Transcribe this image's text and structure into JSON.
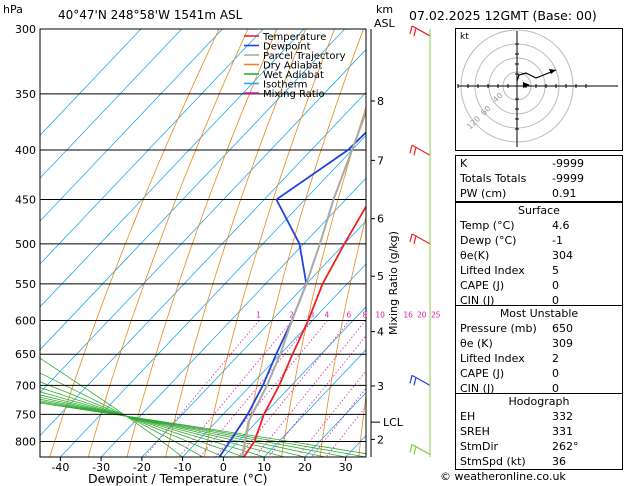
{
  "header": {
    "location": "40°47'N  248°58'W  1541m  ASL",
    "datetime": "07.02.2025  12GMT  (Base: 00)",
    "hpa_unit": "hPa",
    "km_unit": "km",
    "asl_label": "ASL",
    "watermark": "© weatheronline.co.uk"
  },
  "chart_data": {
    "type": "skew-t",
    "xlabel": "Dewpoint  /  Temperature  (°C)",
    "ylabel_right": "Mixing Ratio  (g/kg)",
    "pressure_levels": [
      300,
      350,
      400,
      450,
      500,
      550,
      600,
      650,
      700,
      750,
      800
    ],
    "pressure_range": [
      300,
      830
    ],
    "temp_ticks": [
      -40,
      -30,
      -20,
      -10,
      0,
      10,
      20,
      30
    ],
    "temp_range": [
      -45,
      35
    ],
    "km_ticks": [
      {
        "label": "8",
        "p": 356
      },
      {
        "label": "7",
        "p": 410
      },
      {
        "label": "6",
        "p": 471
      },
      {
        "label": "5",
        "p": 540
      },
      {
        "label": "4",
        "p": 616
      },
      {
        "label": "3",
        "p": 701
      },
      {
        "label": "2",
        "p": 796
      }
    ],
    "lcl": {
      "label": "LCL",
      "p": 764
    },
    "mixing_ratios": [
      1,
      2,
      3,
      4,
      6,
      8,
      10,
      16,
      20,
      25
    ],
    "mixing_ratio_labels": [
      "1",
      "2",
      "3",
      "4",
      "6",
      "8",
      "10",
      "16",
      "20",
      "25"
    ],
    "legend": [
      {
        "name": "Temperature",
        "color": "#ee2222"
      },
      {
        "name": "Dewpoint",
        "color": "#2244dd"
      },
      {
        "name": "Parcel Trajectory",
        "color": "#aaaaaa"
      },
      {
        "name": "Dry Adiabat",
        "color": "#e8881a"
      },
      {
        "name": "Wet Adiabat",
        "color": "#33aa33"
      },
      {
        "name": "Isotherm",
        "color": "#22aaee"
      },
      {
        "name": "Mixing Ratio",
        "color": "#dd22aa"
      }
    ],
    "series": [
      {
        "name": "Temperature",
        "color": "#ee2222",
        "points": [
          [
            830,
            5
          ],
          [
            800,
            4
          ],
          [
            750,
            0
          ],
          [
            700,
            -3
          ],
          [
            650,
            -7
          ],
          [
            600,
            -11
          ],
          [
            550,
            -16
          ],
          [
            500,
            -20
          ],
          [
            450,
            -24
          ],
          [
            400,
            -30
          ],
          [
            350,
            -37
          ],
          [
            300,
            -45
          ]
        ]
      },
      {
        "name": "Dewpoint",
        "color": "#2244dd",
        "points": [
          [
            830,
            -1
          ],
          [
            800,
            -2
          ],
          [
            750,
            -4
          ],
          [
            700,
            -7
          ],
          [
            650,
            -11
          ],
          [
            600,
            -15
          ],
          [
            550,
            -20
          ],
          [
            500,
            -31
          ],
          [
            450,
            -47
          ],
          [
            400,
            -41
          ],
          [
            350,
            -40
          ],
          [
            300,
            -45
          ]
        ]
      },
      {
        "name": "Parcel Trajectory",
        "color": "#aaaaaa",
        "points": [
          [
            830,
            4.6
          ],
          [
            764,
            -2
          ],
          [
            700,
            -6
          ],
          [
            650,
            -10
          ],
          [
            600,
            -15
          ],
          [
            550,
            -20
          ],
          [
            500,
            -26
          ],
          [
            450,
            -33
          ],
          [
            400,
            -40
          ],
          [
            350,
            -48
          ],
          [
            300,
            -57
          ]
        ]
      }
    ],
    "wind_barbs": [
      {
        "p": 305,
        "color": "#ee2222"
      },
      {
        "p": 405,
        "color": "#ee2222"
      },
      {
        "p": 500,
        "color": "#ee2222"
      },
      {
        "p": 700,
        "color": "#2244dd"
      },
      {
        "p": 825,
        "color": "#88cc44"
      }
    ]
  },
  "hodograph": {
    "label": "kt",
    "ring_labels": [
      "40",
      "60",
      "120"
    ]
  },
  "indices": [
    {
      "label": "K",
      "value": "-9999"
    },
    {
      "label": "Totals Totals",
      "value": "-9999"
    },
    {
      "label": "PW (cm)",
      "value": "0.91"
    }
  ],
  "surface": {
    "title": "Surface",
    "rows": [
      {
        "label": "Temp (°C)",
        "value": "4.6"
      },
      {
        "label": "Dewp (°C)",
        "value": "-1"
      },
      {
        "label": "θe(K)",
        "value": "304"
      },
      {
        "label": "Lifted Index",
        "value": "5"
      },
      {
        "label": "CAPE (J)",
        "value": "0"
      },
      {
        "label": "CIN (J)",
        "value": "0"
      }
    ]
  },
  "most_unstable": {
    "title": "Most Unstable",
    "rows": [
      {
        "label": "Pressure (mb)",
        "value": "650"
      },
      {
        "label": "θe (K)",
        "value": "309"
      },
      {
        "label": "Lifted Index",
        "value": "2"
      },
      {
        "label": "CAPE (J)",
        "value": "0"
      },
      {
        "label": "CIN (J)",
        "value": "0"
      }
    ]
  },
  "hodograph_table": {
    "title": "Hodograph",
    "rows": [
      {
        "label": "EH",
        "value": "332"
      },
      {
        "label": "SREH",
        "value": "331"
      },
      {
        "label": "StmDir",
        "value": "262°"
      },
      {
        "label": "StmSpd (kt)",
        "value": "36"
      }
    ]
  }
}
